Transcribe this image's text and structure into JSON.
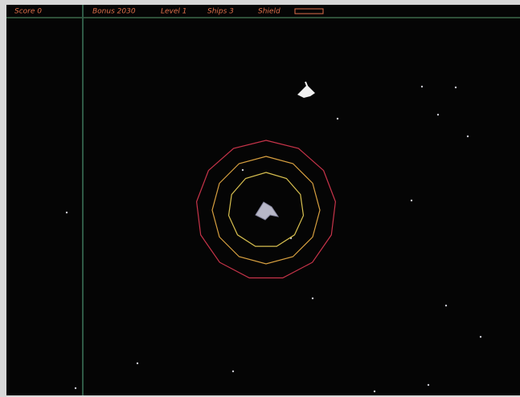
{
  "hud": {
    "score": "Score 0",
    "bonus": "Bonus 2030",
    "level": "Level 1",
    "ships": "Ships 3",
    "shield": "Shield"
  }
}
